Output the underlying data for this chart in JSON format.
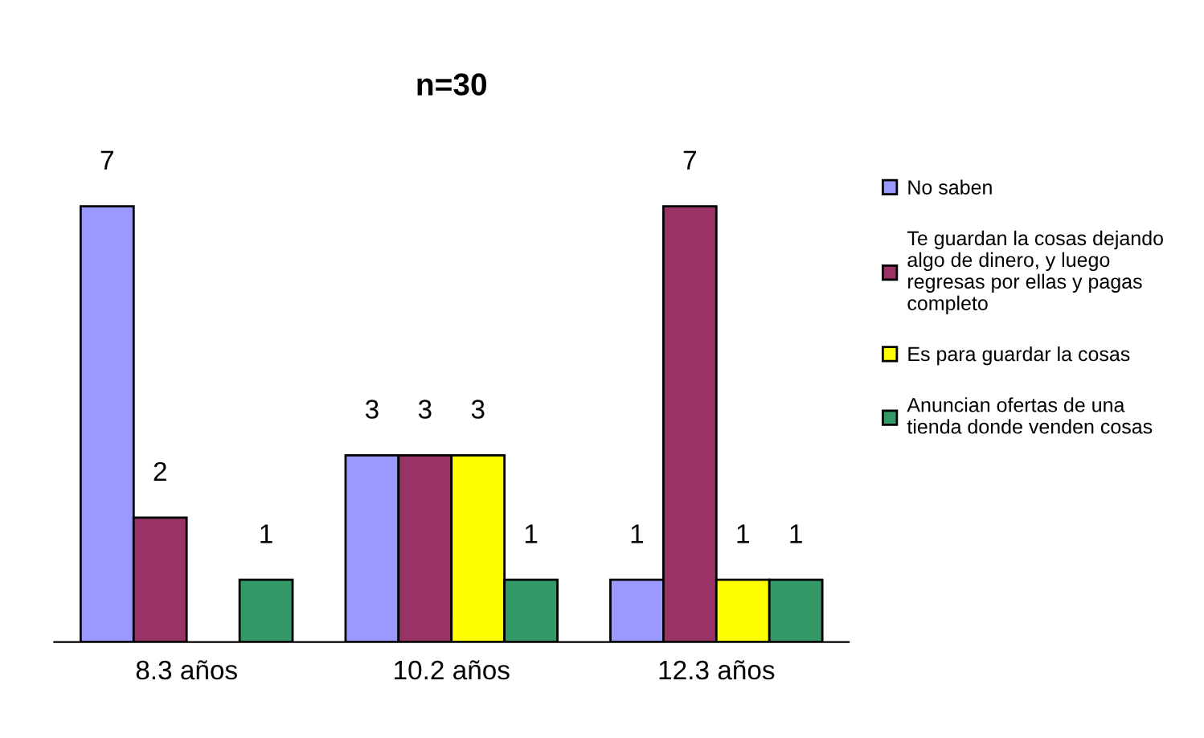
{
  "chart_data": {
    "type": "bar",
    "title": "n=30",
    "categories": [
      "8.3 años",
      "10.2 años",
      "12.3 años"
    ],
    "series": [
      {
        "name": "No saben",
        "color": "#9999ff",
        "values": [
          7,
          3,
          1
        ]
      },
      {
        "name": "Te guardan la cosas dejando\nalgo de dinero, y luego\nregresas por ellas y pagas\ncompleto",
        "color": "#993366",
        "values": [
          2,
          3,
          7
        ]
      },
      {
        "name": "Es para guardar la cosas",
        "color": "#ffff00",
        "values": [
          null,
          3,
          1
        ]
      },
      {
        "name": "Anuncian ofertas de una\ntienda donde venden cosas",
        "color": "#339966",
        "values": [
          1,
          1,
          1
        ]
      }
    ],
    "data_labels": true,
    "legend": "right",
    "grid": false
  }
}
